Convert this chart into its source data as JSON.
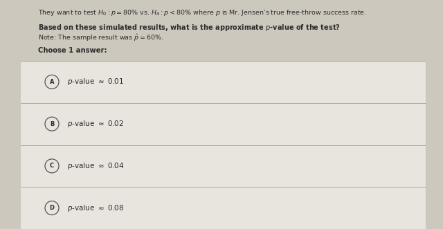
{
  "bg_color": "#cdc8be",
  "white_area": "#e8e4de",
  "text_color": "#2b2b2b",
  "divider_color": "#b0a898",
  "circle_edge_color": "#555555",
  "circle_fill_color": "#e8e4de",
  "header": "They want to test $H_0 : p = 80\\%$ vs. $H_a : p < 80\\%$ where $p$ is Mr. Jensen's true free-throw success rate.",
  "question": "Based on these simulated results, what is the approximate p-value of the test?",
  "note": "Note: The sample result was $\\hat{p} = 60\\%$.",
  "choose": "Choose 1 answer:",
  "option_labels": [
    "A",
    "B",
    "C",
    "D"
  ],
  "option_values": [
    "0.01",
    "0.02",
    "0.04",
    "0.08"
  ],
  "figwidth": 6.4,
  "figheight": 3.31,
  "dpi": 100
}
